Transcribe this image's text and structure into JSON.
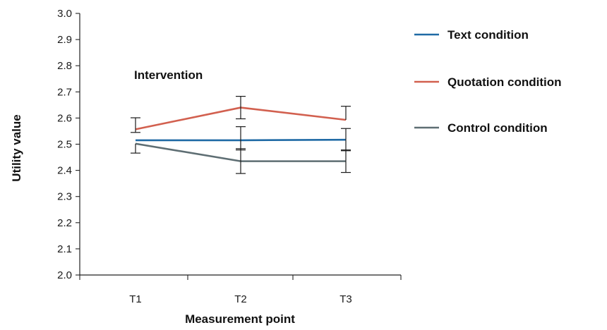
{
  "chart_data": {
    "type": "line",
    "xlabel": "Measurement point",
    "ylabel": "Utility value",
    "categories": [
      "T1",
      "T2",
      "T3"
    ],
    "ylim": [
      2.0,
      3.0
    ],
    "yticks": [
      "2.0",
      "2.1",
      "2.2",
      "2.3",
      "2.4",
      "2.5",
      "2.6",
      "2.7",
      "2.8",
      "2.9",
      "3.0"
    ],
    "annotation": "Intervention",
    "legend_position": "right",
    "grid": false,
    "series": [
      {
        "name": "Text condition",
        "color": "#1f6aa5",
        "values": [
          2.515,
          2.515,
          2.517
        ],
        "error_low": [
          null,
          2.478,
          2.475
        ],
        "error_high": [
          null,
          2.567,
          2.56
        ]
      },
      {
        "name": "Quotation condition",
        "color": "#d2604f",
        "values": [
          2.557,
          2.64,
          2.593
        ],
        "error_low": [
          2.545,
          2.597,
          null
        ],
        "error_high": [
          2.601,
          2.683,
          2.645
        ]
      },
      {
        "name": "Control condition",
        "color": "#5e6e73",
        "values": [
          2.502,
          2.435,
          2.435
        ],
        "error_low": [
          2.466,
          2.388,
          2.392
        ],
        "error_high": [
          null,
          2.483,
          2.478
        ]
      }
    ]
  }
}
